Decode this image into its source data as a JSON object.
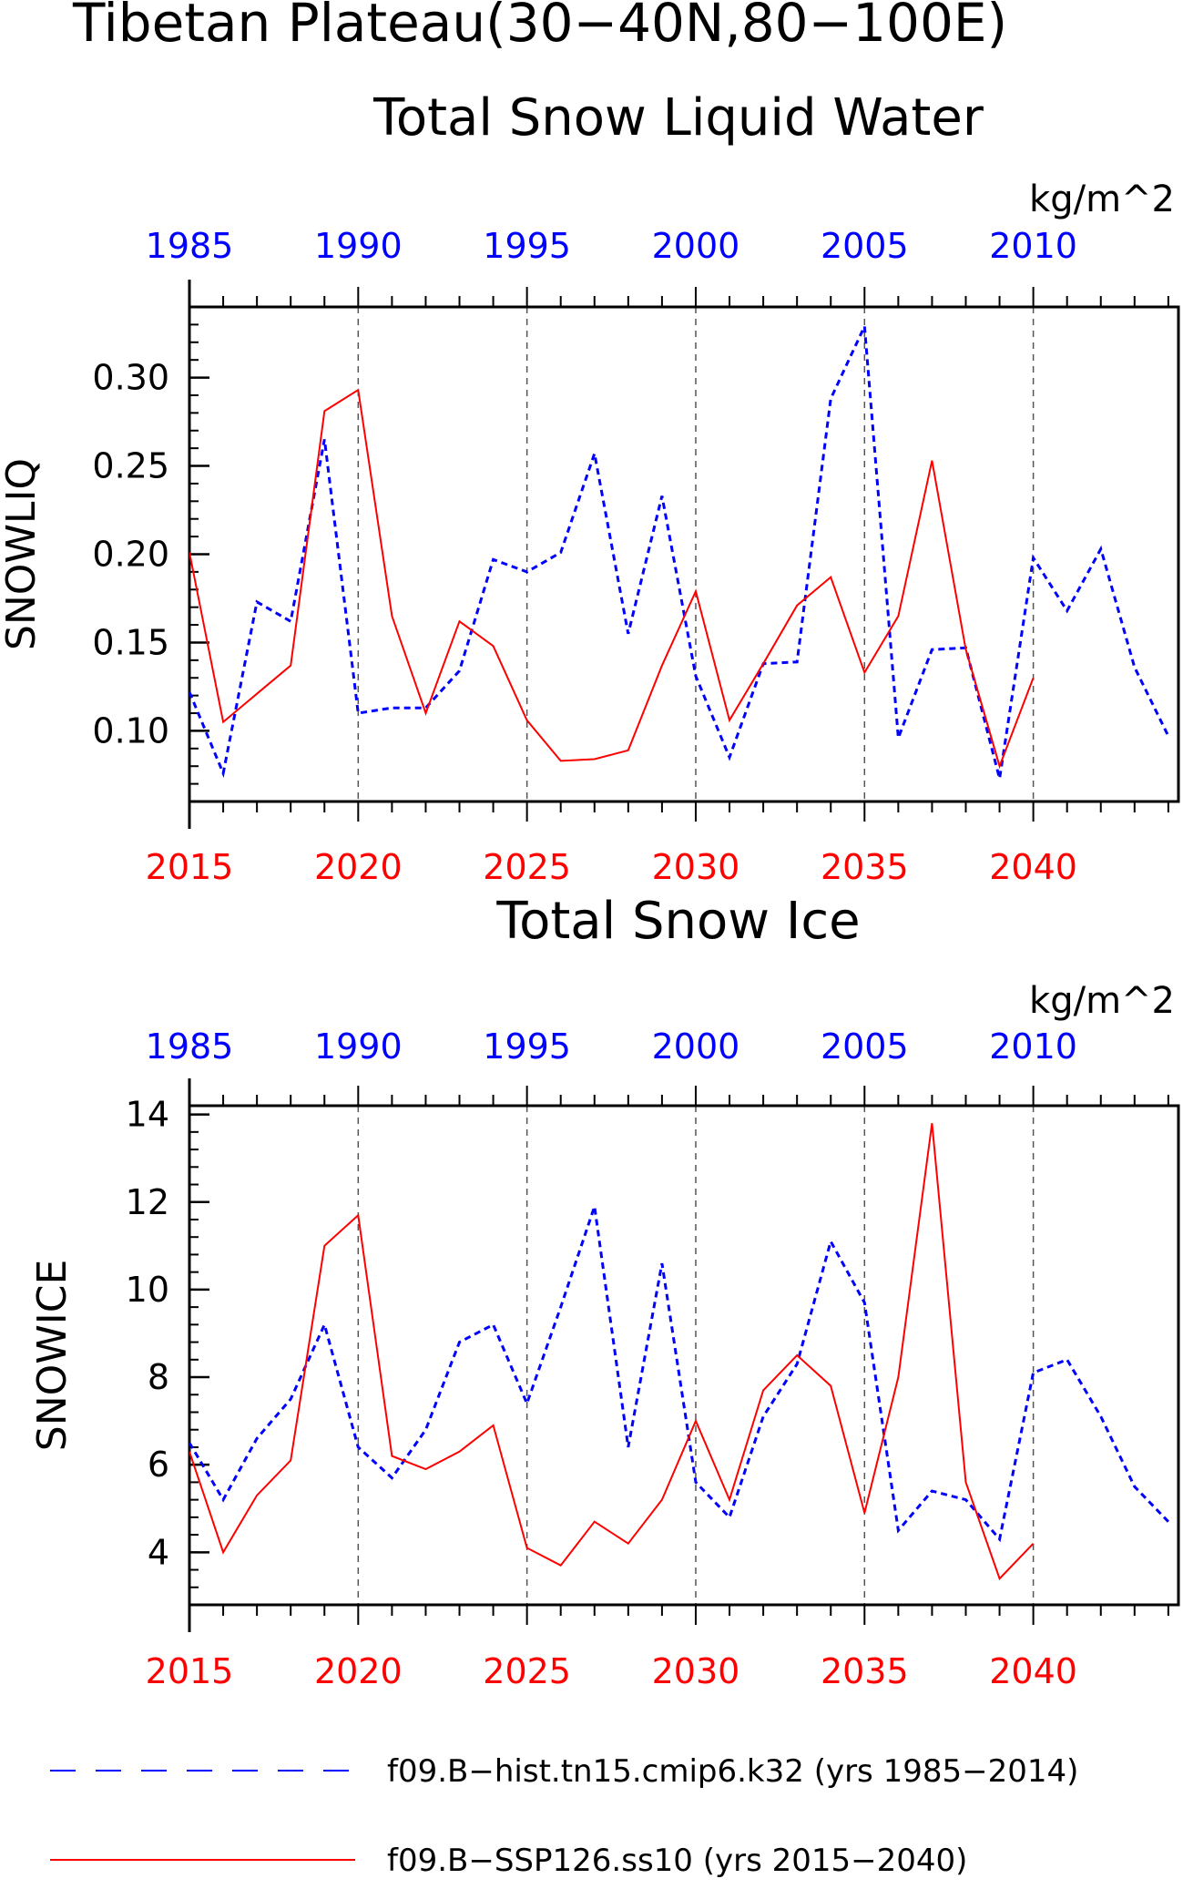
{
  "figure": {
    "title_line1": "Tibetan Plateau(30−40N,80−100E)",
    "legend": [
      {
        "label": "f09.B−hist.tn15.cmip6.k32 (yrs 1985−2014)",
        "color": "#0000ff",
        "style": "dashed"
      },
      {
        "label": "f09.B−SSP126.ss10 (yrs 2015−2040)",
        "color": "#ff0000",
        "style": "solid"
      }
    ]
  },
  "chart_data": [
    {
      "type": "line",
      "title": "Total Snow Liquid Water",
      "units": "kg/m^2",
      "ylabel": "SNOWLIQ",
      "ylim": [
        0.06,
        0.34
      ],
      "yticks": [
        0.1,
        0.15,
        0.2,
        0.25,
        0.3
      ],
      "ytick_labels": [
        "0.10",
        "0.15",
        "0.20",
        "0.25",
        "0.30"
      ],
      "bottom_xticks": [
        "2015",
        "2020",
        "2025",
        "2030",
        "2035",
        "2040"
      ],
      "top_xticks": [
        "1985",
        "1990",
        "1995",
        "2000",
        "2005",
        "2010"
      ],
      "grid": "vertical dashed at labeled years",
      "series": [
        {
          "name": "f09.B−hist.tn15.cmip6.k32 (yrs 1985−2014)",
          "color": "#0000ff",
          "style": "dashed",
          "axis": "top",
          "x": [
            1985,
            1986,
            1987,
            1988,
            1989,
            1990,
            1991,
            1992,
            1993,
            1994,
            1995,
            1996,
            1997,
            1998,
            1999,
            2000,
            2001,
            2002,
            2003,
            2004,
            2005,
            2006,
            2007,
            2008,
            2009,
            2010,
            2011,
            2012,
            2013,
            2014
          ],
          "values": [
            0.122,
            0.076,
            0.173,
            0.162,
            0.265,
            0.11,
            0.113,
            0.113,
            0.134,
            0.197,
            0.19,
            0.201,
            0.257,
            0.155,
            0.233,
            0.131,
            0.085,
            0.138,
            0.139,
            0.288,
            0.329,
            0.096,
            0.146,
            0.147,
            0.073,
            0.198,
            0.168,
            0.203,
            0.136,
            0.097
          ]
        },
        {
          "name": "f09.B−SSP126.ss10 (yrs 2015−2040)",
          "color": "#ff0000",
          "style": "solid",
          "axis": "bottom",
          "x": [
            2015,
            2016,
            2017,
            2018,
            2019,
            2020,
            2021,
            2022,
            2023,
            2024,
            2025,
            2026,
            2027,
            2028,
            2029,
            2030,
            2031,
            2032,
            2033,
            2034,
            2035,
            2036,
            2037,
            2038,
            2039,
            2040
          ],
          "values": [
            0.201,
            0.105,
            0.121,
            0.137,
            0.281,
            0.293,
            0.165,
            0.11,
            0.162,
            0.148,
            0.106,
            0.083,
            0.084,
            0.089,
            0.137,
            0.179,
            0.106,
            0.138,
            0.171,
            0.187,
            0.133,
            0.165,
            0.253,
            0.146,
            0.08,
            0.13
          ]
        }
      ]
    },
    {
      "type": "line",
      "title": "Total Snow Ice",
      "units": "kg/m^2",
      "ylabel": "SNOWICE",
      "ylim": [
        2.8,
        14.2
      ],
      "yticks": [
        4,
        6,
        8,
        10,
        12,
        14
      ],
      "ytick_labels": [
        "4",
        "6",
        "8",
        "10",
        "12",
        "14"
      ],
      "bottom_xticks": [
        "2015",
        "2020",
        "2025",
        "2030",
        "2035",
        "2040"
      ],
      "top_xticks": [
        "1985",
        "1990",
        "1995",
        "2000",
        "2005",
        "2010"
      ],
      "grid": "vertical dashed at labeled years",
      "series": [
        {
          "name": "f09.B−hist.tn15.cmip6.k32 (yrs 1985−2014)",
          "color": "#0000ff",
          "style": "dashed",
          "axis": "top",
          "x": [
            1985,
            1986,
            1987,
            1988,
            1989,
            1990,
            1991,
            1992,
            1993,
            1994,
            1995,
            1996,
            1997,
            1998,
            1999,
            2000,
            2001,
            2002,
            2003,
            2004,
            2005,
            2006,
            2007,
            2008,
            2009,
            2010,
            2011,
            2012,
            2013,
            2014
          ],
          "values": [
            6.5,
            5.2,
            6.6,
            7.5,
            9.2,
            6.4,
            5.7,
            6.8,
            8.8,
            9.2,
            7.4,
            9.6,
            11.9,
            6.4,
            10.6,
            5.6,
            4.8,
            7.1,
            8.3,
            11.1,
            9.7,
            4.5,
            5.4,
            5.2,
            4.3,
            8.1,
            8.4,
            7.1,
            5.5,
            4.7
          ]
        },
        {
          "name": "f09.B−SSP126.ss10 (yrs 2015−2040)",
          "color": "#ff0000",
          "style": "solid",
          "axis": "bottom",
          "x": [
            2015,
            2016,
            2017,
            2018,
            2019,
            2020,
            2021,
            2022,
            2023,
            2024,
            2025,
            2026,
            2027,
            2028,
            2029,
            2030,
            2031,
            2032,
            2033,
            2034,
            2035,
            2036,
            2037,
            2038,
            2039,
            2040
          ],
          "values": [
            6.3,
            4.0,
            5.3,
            6.1,
            11.0,
            11.7,
            6.2,
            5.9,
            6.3,
            6.9,
            4.1,
            3.7,
            4.7,
            4.2,
            5.2,
            7.0,
            5.2,
            7.7,
            8.5,
            7.8,
            4.9,
            8.0,
            13.8,
            5.6,
            3.4,
            4.2
          ]
        }
      ]
    }
  ]
}
